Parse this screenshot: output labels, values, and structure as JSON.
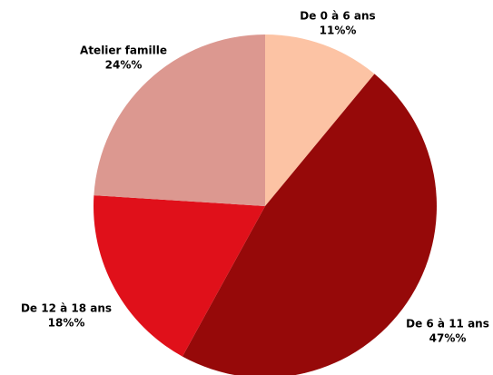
{
  "chart_data": {
    "type": "pie",
    "categories": [
      "De 0 à 6 ans",
      "De 6 à 11 ans",
      "De 12 à 18 ans",
      "Atelier famille"
    ],
    "values": [
      11,
      47,
      18,
      24
    ],
    "value_labels": [
      "11%%",
      "47%%",
      "18%%",
      "24%%"
    ],
    "colors": [
      "#fcc3a4",
      "#960909",
      "#e0101a",
      "#dc9890"
    ]
  }
}
